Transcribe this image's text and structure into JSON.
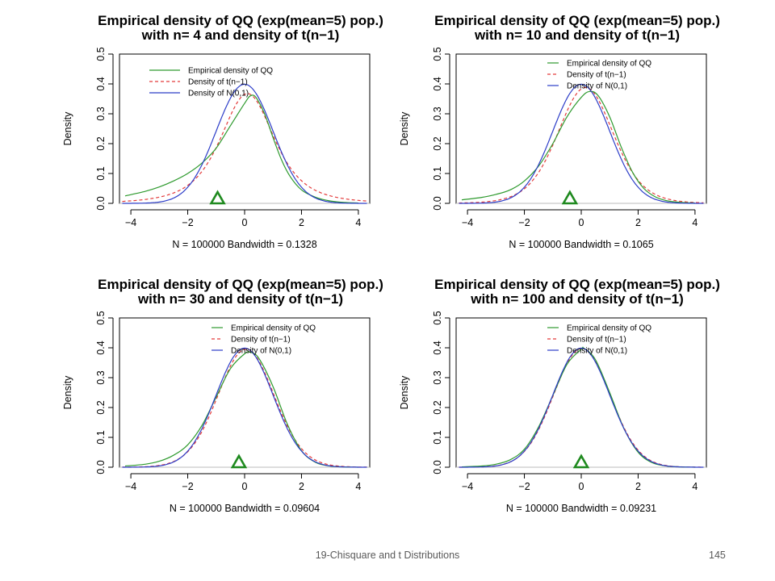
{
  "colors": {
    "empirical": "#2e9a2e",
    "t_dist": "#e33b3b",
    "normal": "#2c3dc8",
    "baseline": "#bbbbbb",
    "marker": "#1f8a1f"
  },
  "footer": {
    "title": "19-Chisquare and t Distributions",
    "page": "145"
  },
  "chart_data": [
    {
      "type": "line",
      "title": [
        "Empirical density of QQ (exp(mean=5) pop.)",
        "with n= 4  and density of t(n−1)"
      ],
      "xlabel": "N = 100000   Bandwidth = 0.1328",
      "ylabel": "Density",
      "xlim": [
        -4.4,
        4.4
      ],
      "ylim": [
        0,
        0.5
      ],
      "xticks": [
        -4,
        -2,
        0,
        2,
        4
      ],
      "yticks": [
        0.0,
        0.1,
        0.2,
        0.3,
        0.4,
        0.5
      ],
      "legend": {
        "position": "top",
        "entries": [
          "Empirical density of QQ",
          "Density of t(n−1)",
          "Density of N(0,1)"
        ]
      },
      "marker": {
        "shape": "triangle",
        "x": -0.95
      },
      "series": [
        {
          "name": "Empirical density of QQ",
          "style": "solid",
          "x": [
            -4.2,
            -3.5,
            -3.0,
            -2.5,
            -2.0,
            -1.5,
            -1.0,
            -0.5,
            0.0,
            0.2,
            0.4,
            0.7,
            1.0,
            1.3,
            1.6,
            2.0,
            2.5,
            3.0,
            3.5,
            4.0
          ],
          "y": [
            0.025,
            0.04,
            0.055,
            0.075,
            0.1,
            0.135,
            0.185,
            0.26,
            0.335,
            0.36,
            0.355,
            0.3,
            0.22,
            0.145,
            0.09,
            0.045,
            0.02,
            0.008,
            0.003,
            0.001
          ]
        },
        {
          "name": "Density of t(n−1)",
          "style": "dashed",
          "dist": "t",
          "df": 3,
          "shift": 0.1
        },
        {
          "name": "Density of N(0,1)",
          "style": "solid",
          "dist": "normal",
          "mean": 0,
          "sd": 1
        }
      ]
    },
    {
      "type": "line",
      "title": [
        "Empirical density of QQ (exp(mean=5) pop.)",
        "with n= 10  and density of t(n−1)"
      ],
      "xlabel": "N = 100000   Bandwidth = 0.1065",
      "ylabel": "Density",
      "xlim": [
        -4.4,
        4.4
      ],
      "ylim": [
        0,
        0.5
      ],
      "xticks": [
        -4,
        -2,
        0,
        2,
        4
      ],
      "yticks": [
        0.0,
        0.1,
        0.2,
        0.3,
        0.4,
        0.5
      ],
      "legend": {
        "position": "top-right",
        "entries": [
          "Empirical density of QQ",
          "Density of t(n−1)",
          "Density of N(0,1)"
        ]
      },
      "marker": {
        "shape": "triangle",
        "x": -0.4
      },
      "series": [
        {
          "name": "Empirical density of QQ",
          "style": "solid",
          "x": [
            -4.2,
            -3.5,
            -3.0,
            -2.5,
            -2.0,
            -1.5,
            -1.0,
            -0.5,
            0.0,
            0.3,
            0.6,
            1.0,
            1.4,
            1.8,
            2.2,
            2.6,
            3.0,
            3.5,
            4.0
          ],
          "y": [
            0.012,
            0.02,
            0.03,
            0.045,
            0.075,
            0.125,
            0.2,
            0.29,
            0.355,
            0.375,
            0.36,
            0.29,
            0.19,
            0.105,
            0.05,
            0.022,
            0.009,
            0.003,
            0.001
          ]
        },
        {
          "name": "Density of t(n−1)",
          "style": "dashed",
          "dist": "t",
          "df": 9,
          "shift": 0.15
        },
        {
          "name": "Density of N(0,1)",
          "style": "solid",
          "dist": "normal",
          "mean": 0,
          "sd": 1
        }
      ]
    },
    {
      "type": "line",
      "title": [
        "Empirical density of QQ (exp(mean=5) pop.)",
        "with n= 30  and density of t(n−1)"
      ],
      "xlabel": "N = 100000   Bandwidth = 0.09604",
      "ylabel": "Density",
      "xlim": [
        -4.4,
        4.4
      ],
      "ylim": [
        0,
        0.5
      ],
      "xticks": [
        -4,
        -2,
        0,
        2,
        4
      ],
      "yticks": [
        0.0,
        0.1,
        0.2,
        0.3,
        0.4,
        0.5
      ],
      "legend": {
        "position": "top-right",
        "entries": [
          "Empirical density of QQ",
          "Density of t(n−1)",
          "Density of N(0,1)"
        ]
      },
      "marker": {
        "shape": "triangle",
        "x": -0.2
      },
      "series": [
        {
          "name": "Empirical density of QQ",
          "style": "solid",
          "x": [
            -4.2,
            -3.5,
            -3.0,
            -2.5,
            -2.0,
            -1.5,
            -1.0,
            -0.5,
            0.0,
            0.2,
            0.5,
            1.0,
            1.5,
            2.0,
            2.5,
            3.0,
            3.5,
            4.0
          ],
          "y": [
            0.004,
            0.01,
            0.02,
            0.04,
            0.075,
            0.14,
            0.235,
            0.33,
            0.38,
            0.385,
            0.365,
            0.27,
            0.145,
            0.055,
            0.016,
            0.004,
            0.001,
            0.0
          ]
        },
        {
          "name": "Density of t(n−1)",
          "style": "dashed",
          "dist": "t",
          "df": 29,
          "shift": 0.05
        },
        {
          "name": "Density of N(0,1)",
          "style": "solid",
          "dist": "normal",
          "mean": 0,
          "sd": 1
        }
      ]
    },
    {
      "type": "line",
      "title": [
        "Empirical density of QQ (exp(mean=5) pop.)",
        "with n= 100  and density of t(n−1)"
      ],
      "xlabel": "N = 100000   Bandwidth = 0.09231",
      "ylabel": "Density",
      "xlim": [
        -4.4,
        4.4
      ],
      "ylim": [
        0,
        0.5
      ],
      "xticks": [
        -4,
        -2,
        0,
        2,
        4
      ],
      "yticks": [
        0.0,
        0.1,
        0.2,
        0.3,
        0.4,
        0.5
      ],
      "legend": {
        "position": "top-right",
        "entries": [
          "Empirical density of QQ",
          "Density of t(n−1)",
          "Density of N(0,1)"
        ]
      },
      "marker": {
        "shape": "triangle",
        "x": 0.0
      },
      "series": [
        {
          "name": "Empirical density of QQ",
          "style": "solid",
          "x": [
            -4.2,
            -3.5,
            -3.0,
            -2.5,
            -2.0,
            -1.5,
            -1.0,
            -0.5,
            0.0,
            0.1,
            0.5,
            1.0,
            1.5,
            2.0,
            2.5,
            3.0,
            3.5,
            4.0
          ],
          "y": [
            0.001,
            0.004,
            0.01,
            0.025,
            0.06,
            0.135,
            0.24,
            0.345,
            0.395,
            0.398,
            0.36,
            0.25,
            0.13,
            0.05,
            0.015,
            0.004,
            0.001,
            0.0
          ]
        },
        {
          "name": "Density of t(n−1)",
          "style": "dashed",
          "dist": "t",
          "df": 99,
          "shift": 0.02
        },
        {
          "name": "Density of N(0,1)",
          "style": "solid",
          "dist": "normal",
          "mean": 0,
          "sd": 1
        }
      ]
    }
  ]
}
